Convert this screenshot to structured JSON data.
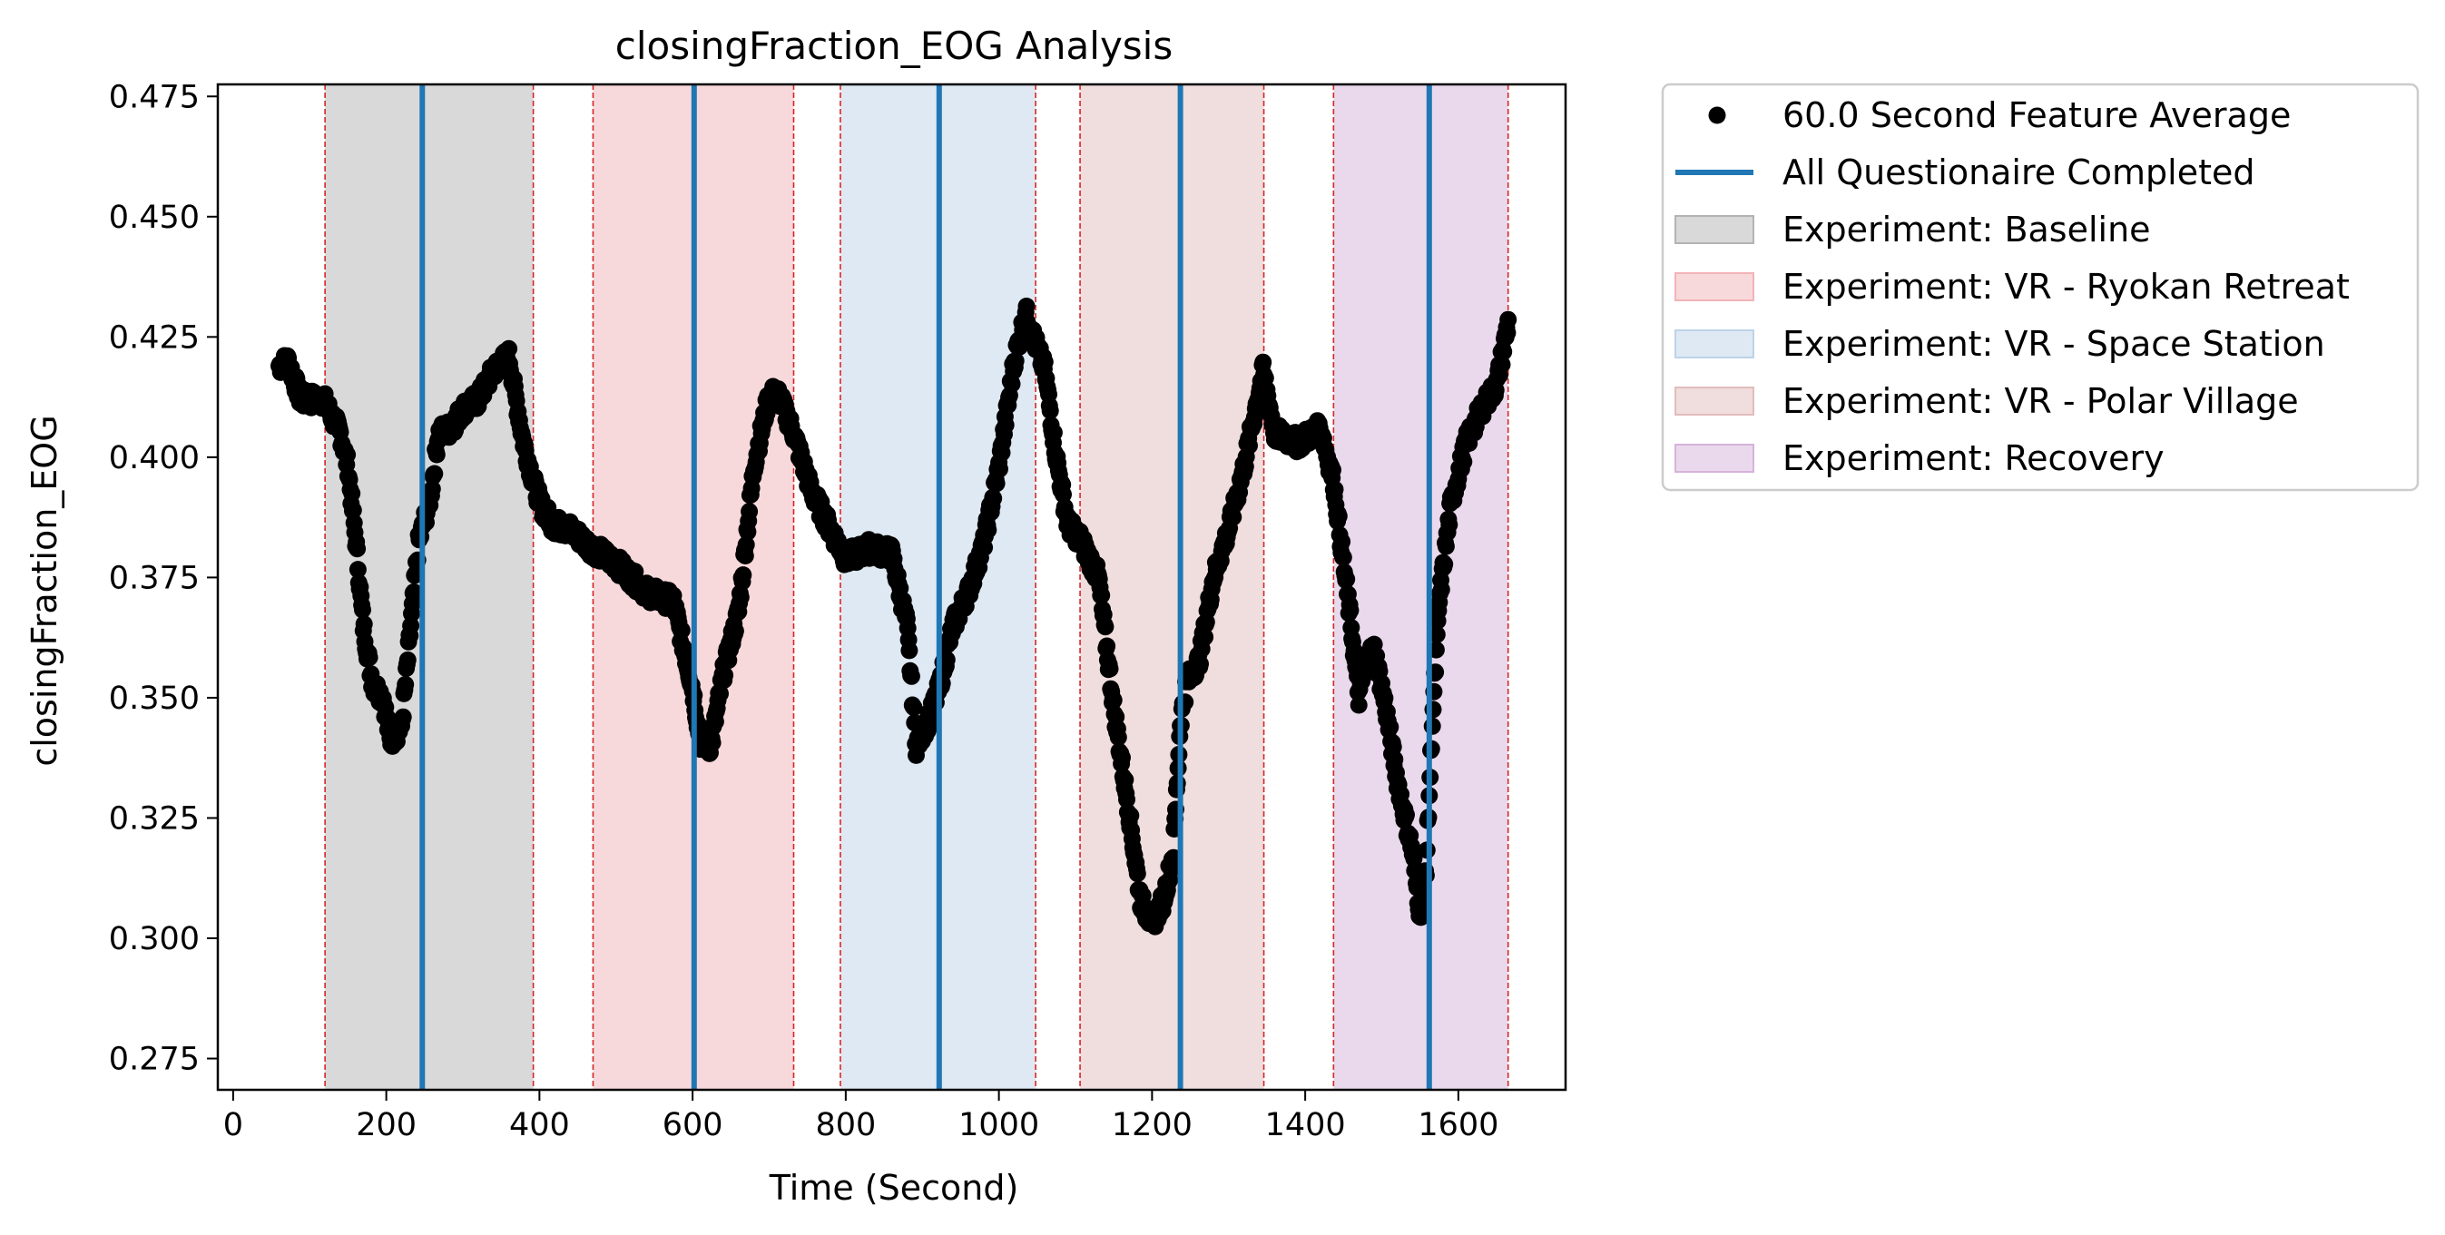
{
  "chart_data": {
    "type": "scatter",
    "title": "closingFraction_EOG Analysis",
    "xlabel": "Time (Second)",
    "ylabel": "closingFraction_EOG",
    "xlim": [
      -20,
      1740
    ],
    "ylim": [
      0.2685,
      0.4775
    ],
    "xticks": [
      0,
      200,
      400,
      600,
      800,
      1000,
      1200,
      1400,
      1600
    ],
    "yticks": [
      0.275,
      0.3,
      0.325,
      0.35,
      0.375,
      0.4,
      0.425,
      0.45,
      0.475
    ],
    "grid": false,
    "legend_position": "outside-right-top",
    "experiments": [
      {
        "name": "Experiment: Baseline",
        "start": 120,
        "end": 392,
        "color": "#b3b3b3"
      },
      {
        "name": "Experiment: VR - Ryokan Retreat",
        "start": 470,
        "end": 732,
        "color": "#f2b3b8"
      },
      {
        "name": "Experiment: VR - Space Station",
        "start": 793,
        "end": 1048,
        "color": "#bdd3e8"
      },
      {
        "name": "Experiment: VR - Polar Village",
        "start": 1106,
        "end": 1346,
        "color": "#e2bcbc"
      },
      {
        "name": "Experiment: Recovery",
        "start": 1437,
        "end": 1665,
        "color": "#d6b3da"
      }
    ],
    "questionnaire_completed": {
      "name": "All Questionaire Completed",
      "times": [
        247,
        602,
        922,
        1237,
        1562
      ],
      "color": "#1f77b4"
    },
    "feature_average": {
      "name": "60.0 Second Feature Average",
      "color": "#000000",
      "anchors_x": [
        60,
        72,
        88,
        118,
        140,
        150,
        160,
        170,
        182,
        196,
        205,
        220,
        232,
        242,
        250,
        258,
        268,
        285,
        300,
        320,
        340,
        360,
        378,
        392,
        402,
        418,
        440,
        470,
        500,
        540,
        575,
        600,
        610,
        624,
        640,
        660,
        680,
        700,
        712,
        732,
        755,
        780,
        800,
        830,
        860,
        880,
        892,
        910,
        922,
        940,
        960,
        980,
        1000,
        1020,
        1035,
        1045,
        1060,
        1075,
        1090,
        1106,
        1130,
        1150,
        1170,
        1185,
        1200,
        1215,
        1228,
        1237,
        1245,
        1262,
        1280,
        1300,
        1320,
        1335,
        1345,
        1360,
        1390,
        1420,
        1437,
        1450,
        1460,
        1470,
        1480,
        1490,
        1505,
        1520,
        1540,
        1550,
        1558,
        1566,
        1575,
        1590,
        1610,
        1630,
        1650,
        1665
      ],
      "anchors_y": [
        0.419,
        0.42,
        0.412,
        0.412,
        0.405,
        0.398,
        0.383,
        0.365,
        0.353,
        0.35,
        0.341,
        0.344,
        0.365,
        0.382,
        0.387,
        0.392,
        0.405,
        0.406,
        0.41,
        0.412,
        0.418,
        0.421,
        0.404,
        0.395,
        0.39,
        0.386,
        0.385,
        0.381,
        0.378,
        0.372,
        0.37,
        0.352,
        0.341,
        0.34,
        0.355,
        0.368,
        0.398,
        0.413,
        0.413,
        0.405,
        0.393,
        0.385,
        0.379,
        0.381,
        0.38,
        0.365,
        0.34,
        0.346,
        0.352,
        0.365,
        0.372,
        0.382,
        0.398,
        0.42,
        0.43,
        0.425,
        0.418,
        0.4,
        0.386,
        0.383,
        0.375,
        0.348,
        0.326,
        0.308,
        0.303,
        0.308,
        0.318,
        0.345,
        0.353,
        0.358,
        0.375,
        0.385,
        0.398,
        0.41,
        0.418,
        0.405,
        0.403,
        0.406,
        0.395,
        0.378,
        0.365,
        0.35,
        0.358,
        0.36,
        0.348,
        0.333,
        0.318,
        0.305,
        0.315,
        0.345,
        0.37,
        0.39,
        0.403,
        0.41,
        0.415,
        0.428
      ],
      "sample_step_seconds": 1
    }
  }
}
